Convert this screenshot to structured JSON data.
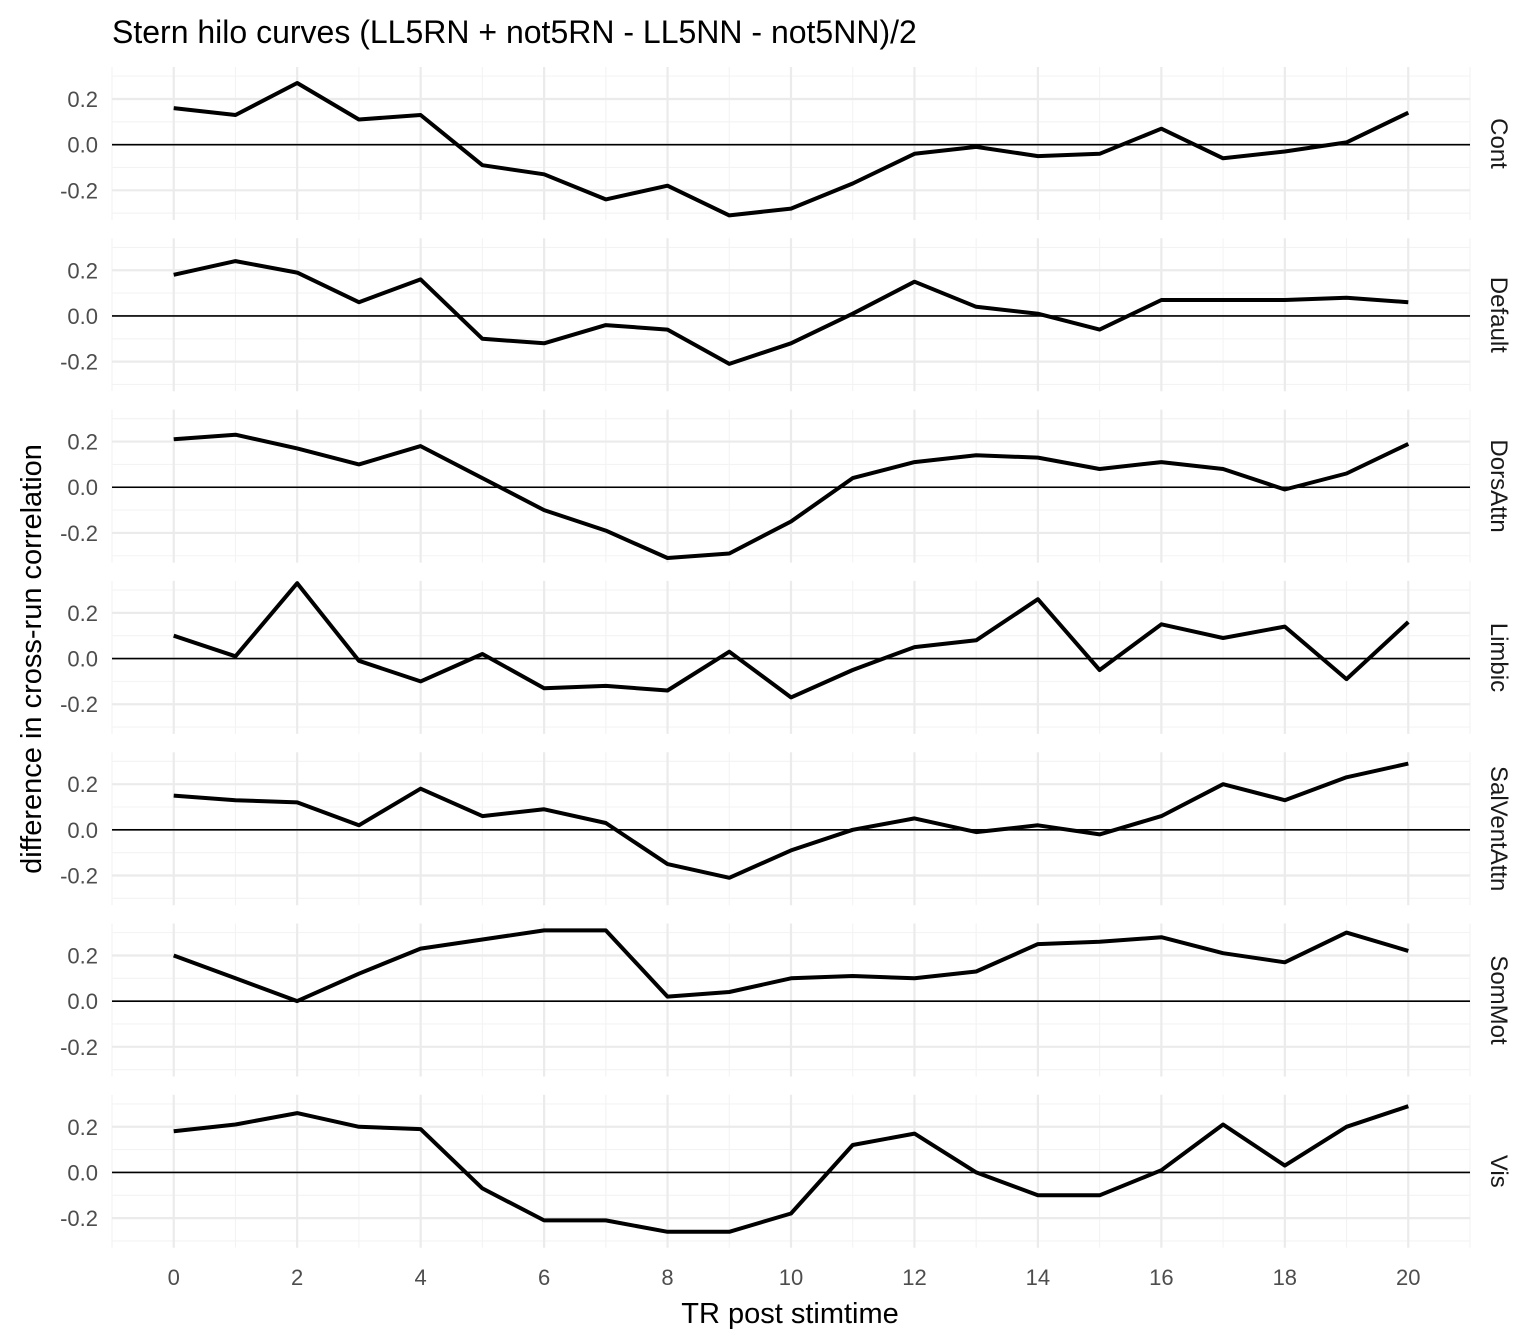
{
  "chart_data": {
    "type": "line",
    "title": "Stern hilo curves (LL5RN + not5RN - LL5NN - not5NN)/2",
    "xlabel": "TR post stimtime",
    "ylabel": "difference in cross-run correlation",
    "x": [
      0,
      1,
      2,
      3,
      4,
      5,
      6,
      7,
      8,
      9,
      10,
      11,
      12,
      13,
      14,
      15,
      16,
      17,
      18,
      19,
      20
    ],
    "xlim": [
      -1,
      21
    ],
    "ylim": [
      -0.33,
      0.34
    ],
    "x_ticks": [
      0,
      2,
      4,
      6,
      8,
      10,
      12,
      14,
      16,
      18,
      20
    ],
    "x_tick_labels": [
      "0",
      "2",
      "4",
      "6",
      "8",
      "10",
      "12",
      "14",
      "16",
      "18",
      "20"
    ],
    "y_ticks": [
      -0.2,
      0.0,
      0.2
    ],
    "y_tick_labels": [
      "-0.2",
      "0.0",
      "0.2"
    ],
    "grid": true,
    "legend": "none",
    "line_color": "#000000",
    "facets": [
      {
        "name": "Cont",
        "values": [
          0.16,
          0.13,
          0.27,
          0.11,
          0.13,
          -0.09,
          -0.13,
          -0.24,
          -0.18,
          -0.31,
          -0.28,
          -0.17,
          -0.04,
          -0.01,
          -0.05,
          -0.04,
          0.07,
          -0.06,
          -0.03,
          0.01,
          0.14
        ]
      },
      {
        "name": "Default",
        "values": [
          0.18,
          0.24,
          0.19,
          0.06,
          0.16,
          -0.1,
          -0.12,
          -0.04,
          -0.06,
          -0.21,
          -0.12,
          0.01,
          0.15,
          0.04,
          0.01,
          -0.06,
          0.07,
          0.07,
          0.07,
          0.08,
          0.06
        ]
      },
      {
        "name": "DorsAttn",
        "values": [
          0.21,
          0.23,
          0.17,
          0.1,
          0.18,
          0.04,
          -0.1,
          -0.19,
          -0.31,
          -0.29,
          -0.15,
          0.04,
          0.11,
          0.14,
          0.13,
          0.08,
          0.11,
          0.08,
          -0.01,
          0.06,
          0.19
        ]
      },
      {
        "name": "Limbic",
        "values": [
          0.1,
          0.01,
          0.33,
          -0.01,
          -0.1,
          0.02,
          -0.13,
          -0.12,
          -0.14,
          0.03,
          -0.17,
          -0.05,
          0.05,
          0.08,
          0.26,
          -0.05,
          0.15,
          0.09,
          0.14,
          -0.09,
          0.16
        ]
      },
      {
        "name": "SalVentAttn",
        "values": [
          0.15,
          0.13,
          0.12,
          0.02,
          0.18,
          0.06,
          0.09,
          0.03,
          -0.15,
          -0.21,
          -0.09,
          0.0,
          0.05,
          -0.01,
          0.02,
          -0.02,
          0.06,
          0.2,
          0.13,
          0.23,
          0.29
        ]
      },
      {
        "name": "SomMot",
        "values": [
          0.2,
          0.1,
          0.0,
          0.12,
          0.23,
          0.27,
          0.31,
          0.31,
          0.02,
          0.04,
          0.1,
          0.11,
          0.1,
          0.13,
          0.25,
          0.26,
          0.28,
          0.21,
          0.17,
          0.3,
          0.22
        ]
      },
      {
        "name": "Vis",
        "values": [
          0.18,
          0.21,
          0.26,
          0.2,
          0.19,
          -0.07,
          -0.21,
          -0.21,
          -0.26,
          -0.26,
          -0.18,
          0.12,
          0.17,
          0.0,
          -0.1,
          -0.1,
          0.01,
          0.21,
          0.03,
          0.2,
          0.29
        ]
      }
    ]
  }
}
